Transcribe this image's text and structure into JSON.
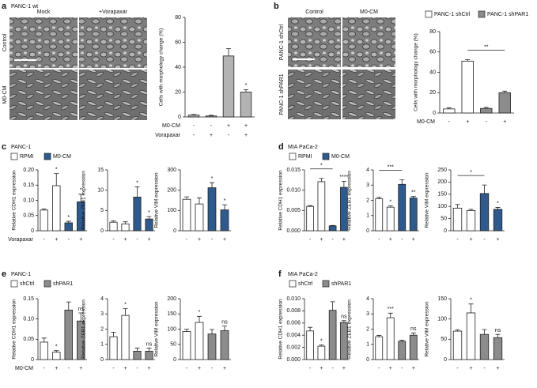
{
  "figure": {
    "a": {
      "label": "a",
      "cell_line": "PANC-1 wt",
      "image_columns": [
        "Mock",
        "+Vorapaxar"
      ],
      "image_rows": [
        "Control",
        "M0-CM"
      ]
    },
    "b": {
      "label": "b",
      "image_columns": [
        "Control",
        "M0-CM"
      ],
      "image_rows": [
        "PANC-1 shCtrl",
        "PANC-1 shPAR1"
      ],
      "legend": [
        {
          "name": "PANC-1 shCtrl",
          "color": "#ffffff"
        },
        {
          "name": "PANC-1 shPAR1",
          "color": "#8c8c8c"
        }
      ]
    },
    "c": {
      "label": "c",
      "cell_line": "PANC-1",
      "legend": [
        {
          "name": "RPMI",
          "color": "#ffffff"
        },
        {
          "name": "M0-CM",
          "color": "#2f5a8e"
        }
      ]
    },
    "d": {
      "label": "d",
      "cell_line": "MIA PaCa-2",
      "legend": [
        {
          "name": "RPMI",
          "color": "#ffffff"
        },
        {
          "name": "M0-CM",
          "color": "#2f5a8e"
        }
      ]
    },
    "e": {
      "label": "e",
      "cell_line": "PANC-1",
      "legend": [
        {
          "name": "shCtrl",
          "color": "#ffffff"
        },
        {
          "name": "shPAR1",
          "color": "#8c8c8c"
        }
      ]
    },
    "f": {
      "label": "f",
      "cell_line": "MIA PaCa-2",
      "legend": [
        {
          "name": "shCtrl",
          "color": "#ffffff"
        },
        {
          "name": "shPAR1",
          "color": "#8c8c8c"
        }
      ]
    }
  },
  "chart_data": [
    {
      "type": "bar",
      "ylabel": "Cells with morphology change (%)",
      "ylim": [
        0,
        80
      ],
      "yticks": [
        0,
        20,
        40,
        60,
        80
      ],
      "series": [
        {
          "color": "#b3b3b3",
          "values": [
            1.5,
            0.8,
            49,
            20
          ],
          "errors": [
            0.5,
            0.5,
            6,
            2
          ]
        }
      ],
      "significance": [
        null,
        null,
        null,
        "*"
      ],
      "conditions": [
        {
          "label": "M0-CM",
          "signs": [
            "-",
            "-",
            "+",
            "+"
          ]
        },
        {
          "label": "Vorapaxar",
          "signs": [
            "-",
            "+",
            "-",
            "+"
          ]
        }
      ]
    },
    {
      "type": "bar",
      "ylabel": "Cells with morphology change (%)",
      "ylim": [
        0,
        80
      ],
      "yticks": [
        0,
        20,
        40,
        60,
        80
      ],
      "series": [
        {
          "color": "#ffffff",
          "values": [
            4,
            51,
            null,
            null
          ],
          "errors": [
            1,
            1.5,
            null,
            null
          ]
        },
        {
          "color": "#8c8c8c",
          "values": [
            null,
            null,
            4.5,
            20
          ],
          "errors": [
            null,
            null,
            1,
            1.5
          ]
        }
      ],
      "brackets": [
        {
          "from": 1,
          "to": 3,
          "label": "**"
        }
      ],
      "conditions": [
        {
          "label": "M0-CM",
          "signs": [
            "-",
            "+",
            "-",
            "+"
          ]
        }
      ]
    },
    {
      "type": "bar",
      "ylabel": "Relative CDH1 expression",
      "ylim": [
        0,
        0.2
      ],
      "yticks": [
        0,
        0.05,
        {
          "value": 0.1,
          "label": "0.10"
        },
        0.15,
        {
          "value": 0.2,
          "label": "0.20"
        }
      ],
      "series": [
        {
          "color": "#ffffff",
          "values": [
            0.068,
            0.148,
            null,
            null
          ],
          "errors": [
            0.004,
            0.04,
            null,
            null
          ]
        },
        {
          "color": "#2f5a8e",
          "values": [
            null,
            null,
            0.026,
            0.095
          ],
          "errors": [
            null,
            null,
            0.005,
            0.025
          ]
        }
      ],
      "significance": [
        null,
        "*",
        "*",
        "*"
      ],
      "conditions": [
        {
          "label": "Vorapaxar",
          "signs": [
            "-",
            "+",
            "-",
            "+"
          ]
        }
      ]
    },
    {
      "type": "bar",
      "ylabel": "Relative ZEB1 expression",
      "ylim": [
        0,
        15
      ],
      "yticks": [
        0,
        5,
        10,
        15
      ],
      "series": [
        {
          "color": "#ffffff",
          "values": [
            2.1,
            1.7,
            null,
            null
          ],
          "errors": [
            0.3,
            0.5,
            null,
            null
          ]
        },
        {
          "color": "#2f5a8e",
          "values": [
            null,
            null,
            8.3,
            2.9
          ],
          "errors": [
            null,
            null,
            2.5,
            0.6
          ]
        }
      ],
      "significance": [
        null,
        null,
        "*",
        "*"
      ],
      "conditions": [
        {
          "signs": [
            "-",
            "+",
            "-",
            "+"
          ]
        }
      ]
    },
    {
      "type": "bar",
      "ylabel": "Relative VIM expression",
      "ylim": [
        0,
        300
      ],
      "yticks": [
        0,
        100,
        200,
        300
      ],
      "series": [
        {
          "color": "#ffffff",
          "values": [
            155,
            132,
            null,
            null
          ],
          "errors": [
            12,
            30,
            null,
            null
          ]
        },
        {
          "color": "#2f5a8e",
          "values": [
            null,
            null,
            212,
            103
          ],
          "errors": [
            null,
            null,
            25,
            25
          ]
        }
      ],
      "significance": [
        null,
        null,
        "*",
        "*"
      ],
      "conditions": [
        {
          "signs": [
            "-",
            "+",
            "-",
            "+"
          ]
        }
      ]
    },
    {
      "type": "bar",
      "ylabel": "Relative CDH1 expression",
      "ylim": [
        0,
        0.015
      ],
      "yticks": [
        {
          "value": 0,
          "label": "0.000"
        },
        {
          "value": 0.005,
          "label": "0.005"
        },
        {
          "value": 0.01,
          "label": "0.010"
        },
        {
          "value": 0.015,
          "label": "0.015"
        }
      ],
      "series": [
        {
          "color": "#ffffff",
          "values": [
            0.006,
            0.0121,
            null,
            null
          ],
          "errors": [
            0.0002,
            0.0008,
            null,
            null
          ]
        },
        {
          "color": "#2f5a8e",
          "values": [
            null,
            null,
            0.0012,
            0.0107
          ],
          "errors": [
            null,
            null,
            0.0001,
            0.0015
          ]
        }
      ],
      "significance": [
        null,
        null,
        null,
        "****"
      ],
      "brackets": [
        {
          "from": 0,
          "to": 2,
          "label": "*"
        }
      ],
      "conditions": [
        {
          "signs": [
            "-",
            "+",
            "-",
            "+"
          ]
        }
      ]
    },
    {
      "type": "bar",
      "ylabel": "Relative ZEB1 expression",
      "ylim": [
        0,
        4
      ],
      "yticks": [
        0,
        1,
        2,
        3,
        4
      ],
      "series": [
        {
          "color": "#ffffff",
          "values": [
            2.1,
            1.55,
            null,
            null
          ],
          "errors": [
            0.1,
            0.08,
            null,
            null
          ]
        },
        {
          "color": "#2f5a8e",
          "values": [
            null,
            null,
            3.05,
            2.15
          ],
          "errors": [
            null,
            null,
            0.3,
            0.1
          ]
        }
      ],
      "significance": [
        null,
        "*",
        null,
        "**"
      ],
      "brackets": [
        {
          "from": 0,
          "to": 2,
          "label": "***"
        }
      ],
      "conditions": [
        {
          "signs": [
            "-",
            "+",
            "-",
            "+"
          ]
        }
      ]
    },
    {
      "type": "bar",
      "ylabel": "Relative VIM expression",
      "ylim": [
        0,
        250
      ],
      "yticks": [
        0,
        50,
        100,
        150,
        200,
        250
      ],
      "series": [
        {
          "color": "#ffffff",
          "values": [
            93,
            83,
            null,
            null
          ],
          "errors": [
            15,
            5,
            null,
            null
          ]
        },
        {
          "color": "#2f5a8e",
          "values": [
            null,
            null,
            153,
            88
          ],
          "errors": [
            null,
            null,
            35,
            8
          ]
        }
      ],
      "significance": [
        null,
        null,
        null,
        "*"
      ],
      "brackets": [
        {
          "from": 0,
          "to": 2,
          "label": "*"
        }
      ],
      "conditions": [
        {
          "signs": [
            "-",
            "+",
            "-",
            "+"
          ]
        }
      ]
    },
    {
      "type": "bar",
      "ylabel": "Relative CDH1 expression",
      "ylim": [
        0,
        0.15
      ],
      "yticks": [
        0,
        0.05,
        {
          "value": 0.1,
          "label": "0.10"
        },
        0.15
      ],
      "series": [
        {
          "color": "#ffffff",
          "values": [
            0.043,
            0.018,
            null,
            null
          ],
          "errors": [
            0.01,
            0.004,
            null,
            null
          ]
        },
        {
          "color": "#8c8c8c",
          "values": [
            null,
            null,
            0.122,
            0.095
          ],
          "errors": [
            null,
            null,
            0.02,
            0.02
          ]
        }
      ],
      "significance": [
        null,
        "*",
        null,
        "ns"
      ],
      "conditions": [
        {
          "label": "M0-CM",
          "signs": [
            "-",
            "+",
            "-",
            "+"
          ]
        }
      ]
    },
    {
      "type": "bar",
      "ylabel": "Relative ZEB1 expression",
      "ylim": [
        0,
        4
      ],
      "yticks": [
        0,
        1,
        2,
        3,
        4
      ],
      "series": [
        {
          "color": "#ffffff",
          "values": [
            1.5,
            2.9,
            null,
            null
          ],
          "errors": [
            0.3,
            0.45,
            null,
            null
          ]
        },
        {
          "color": "#8c8c8c",
          "values": [
            null,
            null,
            0.55,
            0.55
          ],
          "errors": [
            null,
            null,
            0.2,
            0.2
          ]
        }
      ],
      "significance": [
        null,
        "*",
        null,
        "ns"
      ],
      "conditions": [
        {
          "signs": [
            "-",
            "+",
            "-",
            "+"
          ]
        }
      ]
    },
    {
      "type": "bar",
      "ylabel": "Relative VIM expression",
      "ylim": [
        0,
        200
      ],
      "yticks": [
        0,
        50,
        100,
        150,
        200
      ],
      "series": [
        {
          "color": "#ffffff",
          "values": [
            92,
            122,
            null,
            null
          ],
          "errors": [
            8,
            20,
            null,
            null
          ]
        },
        {
          "color": "#8c8c8c",
          "values": [
            null,
            null,
            84,
            95
          ],
          "errors": [
            null,
            null,
            15,
            15
          ]
        }
      ],
      "significance": [
        null,
        "*",
        null,
        "ns"
      ],
      "conditions": [
        {
          "signs": [
            "-",
            "+",
            "-",
            "+"
          ]
        }
      ]
    },
    {
      "type": "bar",
      "ylabel": "Relative CDH1 expression",
      "ylim": [
        0,
        0.01
      ],
      "yticks": [
        {
          "value": 0,
          "label": "0.000"
        },
        {
          "value": 0.002,
          "label": "0.002"
        },
        {
          "value": 0.004,
          "label": "0.004"
        },
        {
          "value": 0.006,
          "label": "0.006"
        },
        {
          "value": 0.008,
          "label": "0.008"
        },
        {
          "value": 0.01,
          "label": "0.010"
        }
      ],
      "series": [
        {
          "color": "#ffffff",
          "values": [
            0.0047,
            0.0022,
            null,
            null
          ],
          "errors": [
            0.0006,
            0.0002,
            null,
            null
          ]
        },
        {
          "color": "#8c8c8c",
          "values": [
            null,
            null,
            0.0081,
            0.0061
          ],
          "errors": [
            null,
            null,
            0.0014,
            0.0003
          ]
        }
      ],
      "significance": [
        null,
        "*",
        null,
        "ns"
      ],
      "conditions": [
        {
          "signs": [
            "-",
            "+",
            "-",
            "+"
          ]
        }
      ]
    },
    {
      "type": "bar",
      "ylabel": "Relative ZEB1 expression",
      "ylim": [
        0,
        4
      ],
      "yticks": [
        0,
        1,
        2,
        3,
        4
      ],
      "series": [
        {
          "color": "#ffffff",
          "values": [
            1.5,
            2.75,
            null,
            null
          ],
          "errors": [
            0.08,
            0.3,
            null,
            null
          ]
        },
        {
          "color": "#8c8c8c",
          "values": [
            null,
            null,
            1.2,
            1.6
          ],
          "errors": [
            null,
            null,
            0.08,
            0.15
          ]
        }
      ],
      "significance": [
        null,
        "***",
        null,
        "ns"
      ],
      "conditions": [
        {
          "signs": [
            "-",
            "+",
            "-",
            "+"
          ]
        }
      ]
    },
    {
      "type": "bar",
      "ylabel": "Relative VIM expression",
      "ylim": [
        0,
        150
      ],
      "yticks": [
        0,
        50,
        100,
        150
      ],
      "series": [
        {
          "color": "#ffffff",
          "values": [
            70,
            115,
            null,
            null
          ],
          "errors": [
            3,
            22,
            null,
            null
          ]
        },
        {
          "color": "#8c8c8c",
          "values": [
            null,
            null,
            62,
            54
          ],
          "errors": [
            null,
            null,
            12,
            8
          ]
        }
      ],
      "significance": [
        null,
        "*",
        null,
        "ns"
      ],
      "conditions": [
        {
          "signs": [
            "-",
            "+",
            "-",
            "+"
          ]
        }
      ]
    }
  ]
}
